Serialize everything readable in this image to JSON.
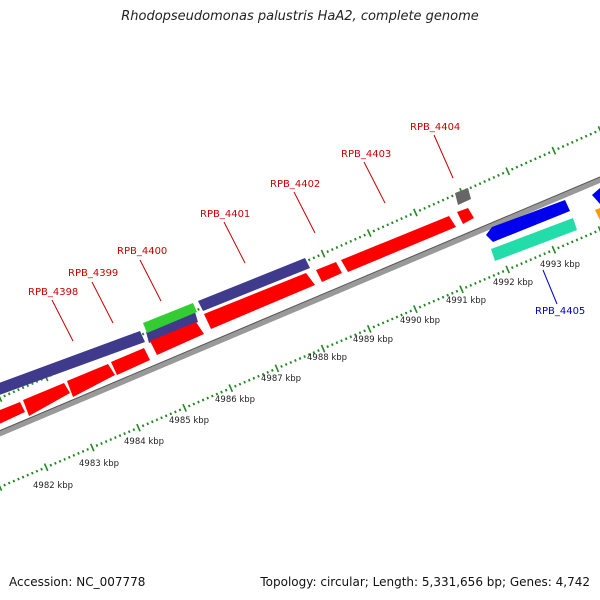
{
  "header": {
    "title": "Rhodopseudomonas palustris HaA2, complete genome"
  },
  "footer": {
    "accession": "Accession: NC_007778",
    "stats": "Topology: circular; Length: 5,331,656 bp; Genes: 4,742"
  },
  "scale_labels": [
    "4982 kbp",
    "4983 kbp",
    "4984 kbp",
    "4985 kbp",
    "4986 kbp",
    "4987 kbp",
    "4988 kbp",
    "4989 kbp",
    "4990 kbp",
    "4991 kbp",
    "4992 kbp",
    "4993 kbp"
  ],
  "gene_labels": [
    {
      "text": "RPB_4398",
      "color": "#cc0000"
    },
    {
      "text": "RPB_4399",
      "color": "#cc0000"
    },
    {
      "text": "RPB_4400",
      "color": "#cc0000"
    },
    {
      "text": "RPB_4401",
      "color": "#cc0000"
    },
    {
      "text": "RPB_4402",
      "color": "#cc0000"
    },
    {
      "text": "RPB_4403",
      "color": "#cc0000"
    },
    {
      "text": "RPB_4404",
      "color": "#cc0000"
    },
    {
      "text": "RPB_4405",
      "color": "#0000cc"
    }
  ],
  "colors": {
    "cds_forward": "#ff0000",
    "cds_reverse": "#0000ee",
    "orf_track": "#3f3a8c",
    "rna": "#33cc33",
    "other": "#777777",
    "teal": "#22ddaa",
    "backbone": "#888888",
    "ticks": "#228822"
  }
}
